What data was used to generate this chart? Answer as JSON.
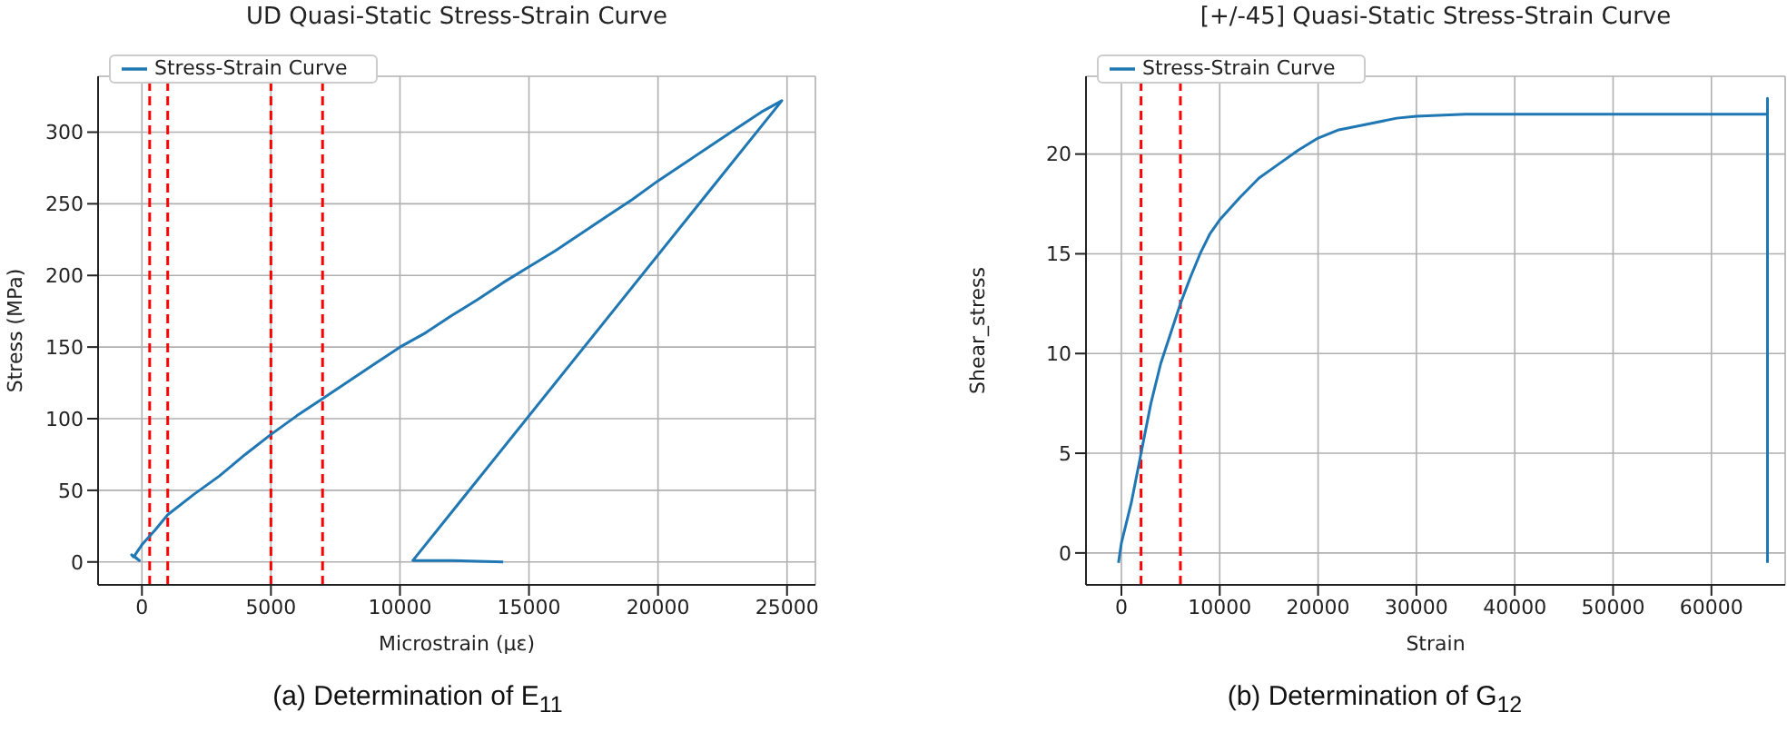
{
  "chart_data": [
    {
      "type": "line",
      "title": "UD Quasi-Static Stress-Strain Curve",
      "xlabel": "Microstrain (µε)",
      "ylabel": "Stress (MPa)",
      "xlim": [
        -1700,
        26100
      ],
      "ylim": [
        -16,
        339
      ],
      "xticks": [
        0,
        5000,
        10000,
        15000,
        20000,
        25000
      ],
      "yticks": [
        0,
        50,
        100,
        150,
        200,
        250,
        300
      ],
      "grid": true,
      "legend": "top left",
      "line_style": "solid",
      "marker": "none",
      "series": [
        {
          "name": "Stress-Strain Curve",
          "color": "#1f77b4",
          "x": [
            -300,
            -400,
            -100,
            -300,
            0,
            500,
            1000,
            2000,
            3000,
            4000,
            5000,
            6000,
            7000,
            8000,
            9000,
            10000,
            11000,
            12000,
            13000,
            14000,
            15000,
            16000,
            17000,
            18000,
            19000,
            20000,
            21000,
            22000,
            23000,
            24000,
            24800,
            10500,
            12000,
            14000
          ],
          "values": [
            3,
            5,
            1,
            4,
            12,
            22,
            33,
            47,
            60,
            75,
            89,
            102,
            114,
            126,
            138,
            150,
            160,
            172,
            183,
            195,
            206,
            217,
            229,
            241,
            253,
            266,
            278,
            290,
            302,
            314,
            322,
            1,
            1,
            0
          ]
        }
      ],
      "ref_lines": [
        {
          "axis": "x",
          "value": 300,
          "color": "#ff0000",
          "line_style": "dashed"
        },
        {
          "axis": "x",
          "value": 1000,
          "color": "#ff0000",
          "line_style": "dashed"
        },
        {
          "axis": "x",
          "value": 5000,
          "color": "#ff0000",
          "line_style": "dashed"
        },
        {
          "axis": "x",
          "value": 7000,
          "color": "#ff0000",
          "line_style": "dashed"
        }
      ],
      "annotations": [
        "(a) Determination of E$_{11}$"
      ]
    },
    {
      "type": "line",
      "title": "[+/-45] Quasi-Static Stress-Strain Curve",
      "xlabel": "Strain",
      "ylabel": "Shear_stress",
      "xlim": [
        -3600,
        67500
      ],
      "ylim": [
        -1.6,
        23.9
      ],
      "xticks": [
        0,
        10000,
        20000,
        30000,
        40000,
        50000,
        60000
      ],
      "yticks": [
        0,
        5,
        10,
        15,
        20
      ],
      "grid": true,
      "legend": "top left",
      "line_style": "solid",
      "marker": "none",
      "series": [
        {
          "name": "Stress-Strain Curve",
          "color": "#1f77b4",
          "x": [
            -300,
            0,
            1000,
            2000,
            3000,
            4000,
            5000,
            6000,
            7000,
            8000,
            9000,
            10000,
            12000,
            14000,
            16000,
            18000,
            20000,
            22000,
            25000,
            28000,
            30000,
            35000,
            40000,
            45000,
            50000,
            55000,
            60000,
            65700,
            65700,
            65700
          ],
          "values": [
            -0.5,
            0.5,
            2.5,
            5,
            7.5,
            9.5,
            11,
            12.5,
            13.8,
            15,
            16,
            16.7,
            17.8,
            18.8,
            19.5,
            20.2,
            20.8,
            21.2,
            21.5,
            21.8,
            21.9,
            22,
            22,
            22,
            22,
            22,
            22,
            22,
            22.8,
            -0.5
          ]
        }
      ],
      "ref_lines": [
        {
          "axis": "x",
          "value": 2000,
          "color": "#ff0000",
          "line_style": "dashed"
        },
        {
          "axis": "x",
          "value": 6000,
          "color": "#ff0000",
          "line_style": "dashed"
        }
      ],
      "annotations": [
        "(b) Determination of G$_{12}$"
      ]
    }
  ]
}
